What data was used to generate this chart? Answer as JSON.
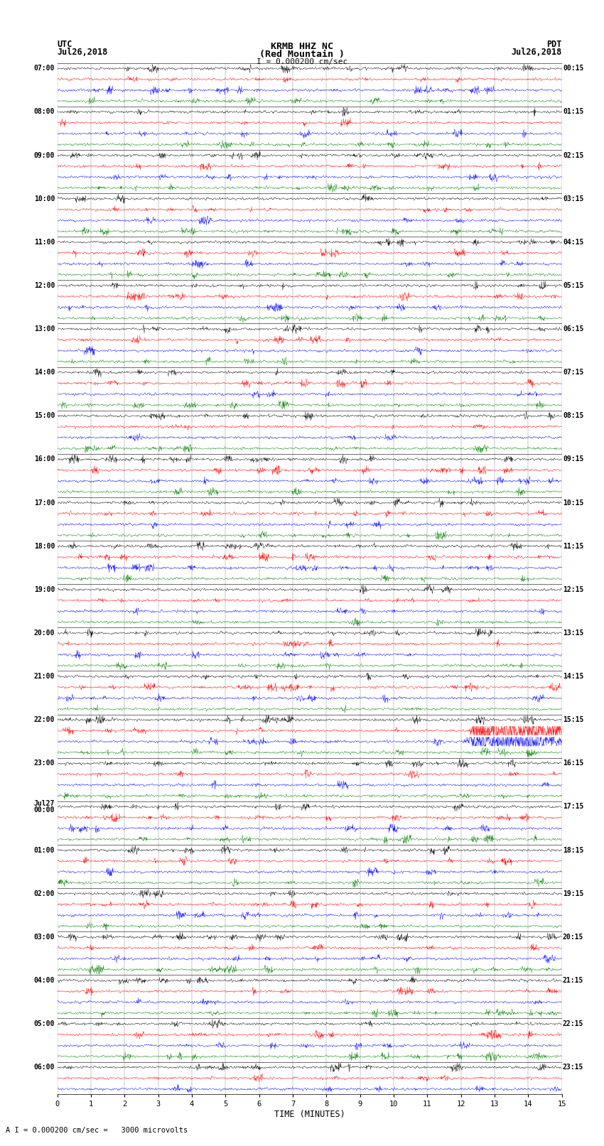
{
  "title_line1": "KRMB HHZ NC",
  "title_line2": "(Red Mountain )",
  "scale_label": "I = 0.000200 cm/sec",
  "left_label_top": "UTC",
  "left_label_date": "Jul26,2018",
  "right_label_top": "PDT",
  "right_label_date": "Jul26,2018",
  "xlabel": "TIME (MINUTES)",
  "bottom_label": "A I = 0.000200 cm/sec =   3000 microvolts",
  "colors": [
    "black",
    "red",
    "blue",
    "green"
  ],
  "utc_labels": [
    "07:00",
    "",
    "",
    "",
    "08:00",
    "",
    "",
    "",
    "09:00",
    "",
    "",
    "",
    "10:00",
    "",
    "",
    "",
    "11:00",
    "",
    "",
    "",
    "12:00",
    "",
    "",
    "",
    "13:00",
    "",
    "",
    "",
    "14:00",
    "",
    "",
    "",
    "15:00",
    "",
    "",
    "",
    "16:00",
    "",
    "",
    "",
    "17:00",
    "",
    "",
    "",
    "18:00",
    "",
    "",
    "",
    "19:00",
    "",
    "",
    "",
    "20:00",
    "",
    "",
    "",
    "21:00",
    "",
    "",
    "",
    "22:00",
    "",
    "",
    "",
    "23:00",
    "",
    "",
    "",
    "Jul27\n00:00",
    "",
    "",
    "",
    "01:00",
    "",
    "",
    "",
    "02:00",
    "",
    "",
    "",
    "03:00",
    "",
    "",
    "",
    "04:00",
    "",
    "",
    "",
    "05:00",
    "",
    "",
    "",
    "06:00",
    "",
    ""
  ],
  "pdt_labels": [
    "00:15",
    "",
    "",
    "",
    "01:15",
    "",
    "",
    "",
    "02:15",
    "",
    "",
    "",
    "03:15",
    "",
    "",
    "",
    "04:15",
    "",
    "",
    "",
    "05:15",
    "",
    "",
    "",
    "06:15",
    "",
    "",
    "",
    "07:15",
    "",
    "",
    "",
    "08:15",
    "",
    "",
    "",
    "09:15",
    "",
    "",
    "",
    "10:15",
    "",
    "",
    "",
    "11:15",
    "",
    "",
    "",
    "12:15",
    "",
    "",
    "",
    "13:15",
    "",
    "",
    "",
    "14:15",
    "",
    "",
    "",
    "15:15",
    "",
    "",
    "",
    "16:15",
    "",
    "",
    "",
    "17:15",
    "",
    "",
    "",
    "18:15",
    "",
    "",
    "",
    "19:15",
    "",
    "",
    "",
    "20:15",
    "",
    "",
    "",
    "21:15",
    "",
    "",
    "",
    "22:15",
    "",
    "",
    "",
    "23:15",
    "",
    ""
  ],
  "n_rows": 95,
  "minutes": 15,
  "background": "white",
  "trace_amplitude": 0.42,
  "noise_amplitude": 0.09,
  "special_row_red": 61,
  "special_row_blue": 62,
  "special_amplitude": 0.8
}
